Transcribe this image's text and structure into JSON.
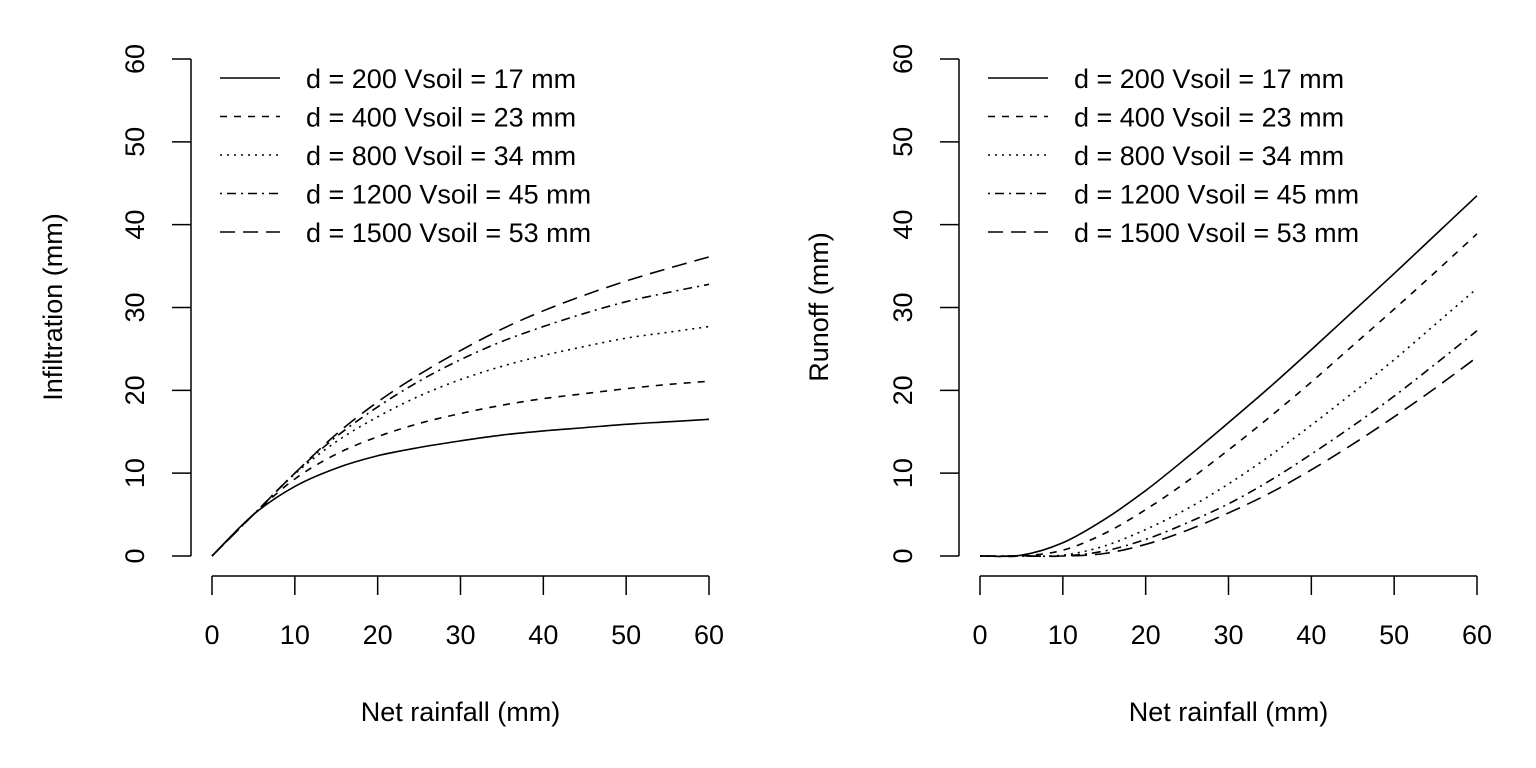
{
  "chart_data": [
    {
      "type": "line",
      "title": "",
      "xlabel": "Net rainfall (mm)",
      "ylabel": "Infiltration (mm)",
      "xlim": [
        0,
        60
      ],
      "ylim": [
        0,
        60
      ],
      "xticks": [
        "0",
        "10",
        "20",
        "30",
        "40",
        "50",
        "60"
      ],
      "yticks": [
        "0",
        "10",
        "20",
        "30",
        "40",
        "50",
        "60"
      ],
      "grid": false,
      "legend_position": "top-left",
      "x": [
        0,
        5,
        10,
        15,
        20,
        25,
        30,
        35,
        40,
        45,
        50,
        55,
        60
      ],
      "series": [
        {
          "name": "d = 200 Vsoil = 17 mm",
          "linestyle": "solid",
          "values": [
            0,
            5.0,
            8.4,
            10.6,
            12.1,
            13.1,
            13.9,
            14.6,
            15.1,
            15.5,
            15.9,
            16.2,
            16.5
          ]
        },
        {
          "name": "d = 400 Vsoil = 23 mm",
          "linestyle": "dashed",
          "values": [
            0,
            5.0,
            9.3,
            12.3,
            14.4,
            16.0,
            17.2,
            18.2,
            19.0,
            19.6,
            20.2,
            20.7,
            21.1
          ]
        },
        {
          "name": "d = 800 Vsoil = 34 mm",
          "linestyle": "dotted",
          "values": [
            0,
            5.0,
            9.9,
            13.8,
            16.8,
            19.3,
            21.3,
            22.9,
            24.2,
            25.3,
            26.3,
            27.0,
            27.7
          ]
        },
        {
          "name": "d = 1200 Vsoil = 45 mm",
          "linestyle": "dotdash",
          "values": [
            0,
            5.0,
            10.0,
            14.4,
            18.0,
            21.1,
            23.7,
            25.9,
            27.7,
            29.3,
            30.7,
            31.8,
            32.8
          ]
        },
        {
          "name": "d = 1500 Vsoil = 53 mm",
          "linestyle": "longdash",
          "values": [
            0,
            5.0,
            10.0,
            14.7,
            18.6,
            21.9,
            24.8,
            27.4,
            29.6,
            31.5,
            33.2,
            34.7,
            36.1
          ]
        }
      ]
    },
    {
      "type": "line",
      "title": "",
      "xlabel": "Net rainfall (mm)",
      "ylabel": "Runoff (mm)",
      "xlim": [
        0,
        60
      ],
      "ylim": [
        0,
        60
      ],
      "xticks": [
        "0",
        "10",
        "20",
        "30",
        "40",
        "50",
        "60"
      ],
      "yticks": [
        "0",
        "10",
        "20",
        "30",
        "40",
        "50",
        "60"
      ],
      "grid": false,
      "legend_position": "top-left",
      "x": [
        0,
        5,
        10,
        15,
        20,
        25,
        30,
        35,
        40,
        45,
        50,
        55,
        60
      ],
      "series": [
        {
          "name": "d = 200 Vsoil = 17 mm",
          "linestyle": "solid",
          "values": [
            0,
            0.1,
            1.6,
            4.4,
            7.9,
            11.9,
            16.1,
            20.4,
            24.9,
            29.5,
            34.1,
            38.8,
            43.5
          ]
        },
        {
          "name": "d = 400 Vsoil = 23 mm",
          "linestyle": "dashed",
          "values": [
            0,
            0,
            0.7,
            2.7,
            5.6,
            9.0,
            12.8,
            16.8,
            21.0,
            25.4,
            29.8,
            34.3,
            38.9
          ]
        },
        {
          "name": "d = 800 Vsoil = 34 mm",
          "linestyle": "dotted",
          "values": [
            0,
            0,
            0.1,
            1.2,
            3.2,
            5.7,
            8.7,
            12.1,
            15.8,
            19.7,
            23.7,
            28.0,
            32.3
          ]
        },
        {
          "name": "d = 1200 Vsoil = 45 mm",
          "linestyle": "dotdash",
          "values": [
            0,
            0,
            0,
            0.6,
            2.0,
            4.0,
            6.3,
            9.1,
            12.3,
            15.7,
            19.3,
            23.2,
            27.2
          ]
        },
        {
          "name": "d = 1500 Vsoil = 53 mm",
          "linestyle": "longdash",
          "values": [
            0,
            0,
            0,
            0.3,
            1.4,
            3.1,
            5.2,
            7.6,
            10.4,
            13.5,
            16.8,
            20.3,
            24.0
          ]
        }
      ]
    }
  ]
}
